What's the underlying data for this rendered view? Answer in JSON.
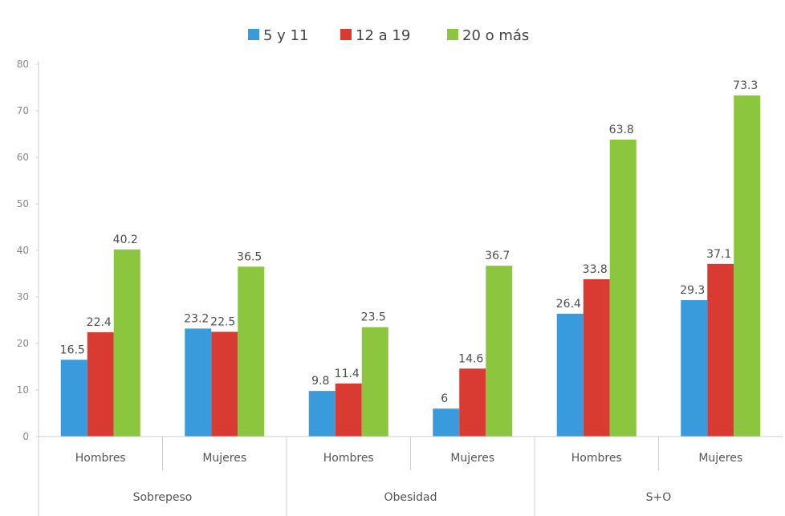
{
  "chart_data": {
    "type": "bar",
    "title": "",
    "xlabel": "",
    "ylabel": "",
    "ylim": [
      0,
      80
    ],
    "yticks": [
      0,
      10,
      20,
      30,
      40,
      50,
      60,
      70,
      80
    ],
    "grid": false,
    "legend_position": "top-center",
    "groups": [
      {
        "label": "Sobrepeso",
        "categories": [
          "Hombres",
          "Mujeres"
        ]
      },
      {
        "label": "Obesidad",
        "categories": [
          "Hombres",
          "Mujeres"
        ]
      },
      {
        "label": "S+O",
        "categories": [
          "Hombres",
          "Mujeres"
        ]
      }
    ],
    "categories": [
      "Hombres",
      "Mujeres",
      "Hombres",
      "Mujeres",
      "Hombres",
      "Mujeres"
    ],
    "series": [
      {
        "name": "5 y 11",
        "color": "#3a9bdc",
        "values": [
          16.5,
          23.2,
          9.8,
          6,
          26.4,
          29.3
        ],
        "labels": [
          "16.5",
          "23.2",
          "9.8",
          "6",
          "26.4",
          "29.3"
        ]
      },
      {
        "name": "12 a 19",
        "color": "#d93a32",
        "values": [
          22.4,
          22.5,
          11.4,
          14.6,
          33.8,
          37.1
        ],
        "labels": [
          "22.4",
          "22.5",
          "11.4",
          "14.6",
          "33.8",
          "37.1"
        ]
      },
      {
        "name": "20 o más",
        "color": "#8cc63f",
        "values": [
          40.2,
          36.5,
          23.5,
          36.7,
          63.8,
          73.3
        ],
        "labels": [
          "40.2",
          "36.5",
          "23.5",
          "36.7",
          "63.8",
          "73.3"
        ]
      }
    ]
  }
}
